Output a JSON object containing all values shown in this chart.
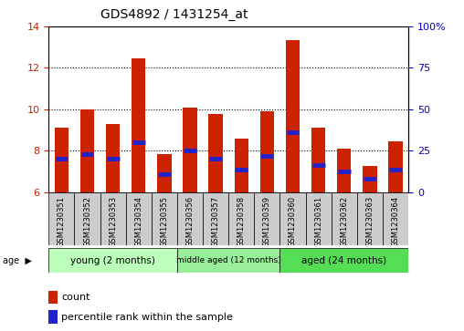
{
  "title": "GDS4892 / 1431254_at",
  "samples": [
    "GSM1230351",
    "GSM1230352",
    "GSM1230353",
    "GSM1230354",
    "GSM1230355",
    "GSM1230356",
    "GSM1230357",
    "GSM1230358",
    "GSM1230359",
    "GSM1230360",
    "GSM1230361",
    "GSM1230362",
    "GSM1230363",
    "GSM1230364"
  ],
  "counts": [
    9.1,
    10.0,
    9.3,
    12.45,
    7.85,
    10.1,
    9.75,
    8.6,
    9.9,
    13.35,
    9.1,
    8.1,
    7.25,
    8.45
  ],
  "percentile_values": [
    7.6,
    7.85,
    7.6,
    8.4,
    6.85,
    8.0,
    7.6,
    7.1,
    7.75,
    8.9,
    7.3,
    7.0,
    6.65,
    7.1
  ],
  "ymin": 6,
  "ymax": 14,
  "yticks": [
    6,
    8,
    10,
    12,
    14
  ],
  "bar_color": "#cc2200",
  "percentile_color": "#2222cc",
  "bar_width": 0.55,
  "groups": [
    {
      "label": "young (2 months)",
      "start": 0,
      "end": 5,
      "color": "#bbffbb"
    },
    {
      "label": "middle aged (12 months)",
      "start": 5,
      "end": 9,
      "color": "#99ee99"
    },
    {
      "label": "aged (24 months)",
      "start": 9,
      "end": 14,
      "color": "#55dd55"
    }
  ],
  "legend_count_label": "count",
  "legend_percentile_label": "percentile rank within the sample",
  "right_axis_ticks": [
    0,
    25,
    50,
    75,
    100
  ],
  "right_axis_color": "#0000cc",
  "tick_label_color": "#cc2200",
  "tick_fontsize": 8,
  "title_fontsize": 10,
  "sample_box_color": "#cccccc",
  "plot_bg_color": "#ffffff"
}
